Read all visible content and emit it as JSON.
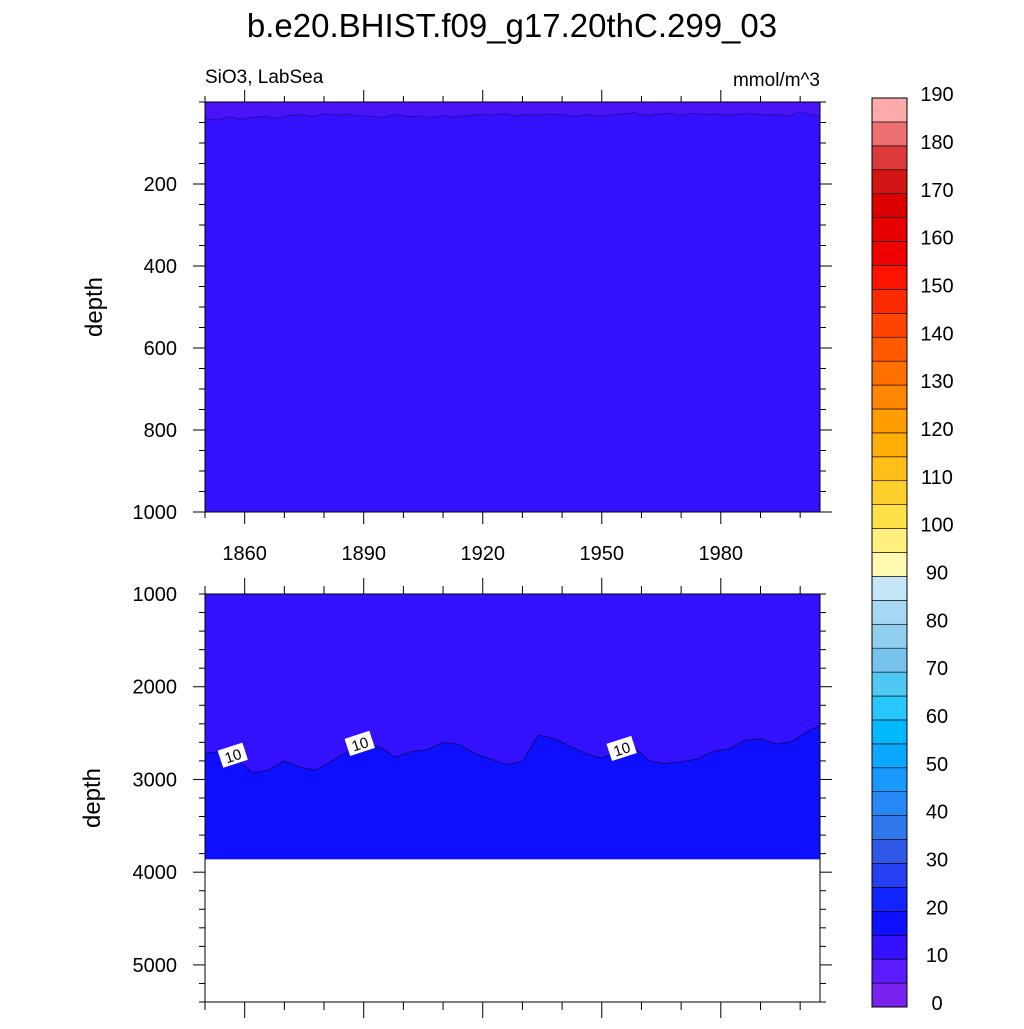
{
  "title": "b.e20.BHIST.f09_g17.20thC.299_03",
  "subtitle_left": "SiO3, LabSea",
  "subtitle_right": "mmol/m^3",
  "chart_data": [
    {
      "type": "heatmap",
      "panel": "upper",
      "ylabel": "depth",
      "xlim": [
        1850,
        2005
      ],
      "ylim": [
        0,
        1000
      ],
      "y_reversed": true,
      "x_ticks": [
        1860,
        1890,
        1920,
        1950,
        1980
      ],
      "y_ticks": [
        200,
        400,
        600,
        800,
        1000
      ],
      "fill_color": "#3311ff",
      "description_values": "SiO3 between 0 and 10 mmol/m^3 throughout 0-1000 m; thin 0-5 layer near surface (~0-45 m)",
      "surface_band": {
        "years": [
          1850,
          1853,
          1856,
          1859,
          1862,
          1865,
          1868,
          1871,
          1874,
          1877,
          1880,
          1883,
          1886,
          1889,
          1892,
          1895,
          1898,
          1901,
          1904,
          1907,
          1910,
          1913,
          1916,
          1919,
          1922,
          1925,
          1928,
          1931,
          1934,
          1937,
          1940,
          1943,
          1946,
          1949,
          1952,
          1955,
          1958,
          1961,
          1964,
          1967,
          1970,
          1973,
          1976,
          1979,
          1982,
          1985,
          1988,
          1991,
          1994,
          1997,
          2000,
          2003,
          2005
        ],
        "depth": [
          40,
          44,
          36,
          42,
          38,
          35,
          40,
          33,
          31,
          36,
          28,
          32,
          30,
          34,
          35,
          38,
          30,
          36,
          34,
          38,
          32,
          37,
          33,
          30,
          32,
          28,
          34,
          30,
          33,
          29,
          31,
          36,
          30,
          35,
          32,
          30,
          26,
          33,
          30,
          28,
          32,
          27,
          31,
          29,
          33,
          30,
          28,
          32,
          30,
          34,
          24,
          32,
          33
        ]
      }
    },
    {
      "type": "heatmap",
      "panel": "lower",
      "ylabel": "depth",
      "xlim": [
        1850,
        2005
      ],
      "ylim": [
        1000,
        5400
      ],
      "y_reversed": true,
      "y_ticks": [
        1000,
        2000,
        3000,
        4000,
        5000
      ],
      "bottom_depth": 3860,
      "contour_label": "10",
      "contour_label_years": [
        1857,
        1889,
        1955
      ],
      "contour_10": {
        "years": [
          1850,
          1854,
          1858,
          1862,
          1866,
          1870,
          1874,
          1878,
          1882,
          1886,
          1890,
          1894,
          1898,
          1902,
          1906,
          1910,
          1914,
          1918,
          1922,
          1926,
          1930,
          1934,
          1938,
          1942,
          1946,
          1950,
          1954,
          1958,
          1962,
          1966,
          1970,
          1974,
          1978,
          1982,
          1986,
          1990,
          1994,
          1998,
          2002,
          2005
        ],
        "depth": [
          2720,
          2700,
          2780,
          2930,
          2900,
          2800,
          2870,
          2900,
          2800,
          2700,
          2610,
          2650,
          2760,
          2700,
          2680,
          2600,
          2620,
          2720,
          2780,
          2840,
          2810,
          2520,
          2560,
          2640,
          2720,
          2770,
          2700,
          2650,
          2800,
          2830,
          2810,
          2780,
          2700,
          2670,
          2580,
          2560,
          2620,
          2590,
          2480,
          2420
        ]
      },
      "colors": {
        "above_10": "#3311ff",
        "below_10": "#0f0fff"
      }
    }
  ],
  "colorbar": {
    "labels": [
      "0",
      "10",
      "20",
      "30",
      "40",
      "50",
      "60",
      "70",
      "80",
      "90",
      "100",
      "110",
      "120",
      "130",
      "140",
      "150",
      "160",
      "170",
      "180",
      "190"
    ],
    "colors": [
      "#7a22ee",
      "#5a1cff",
      "#3311ff",
      "#0f0fff",
      "#1224ff",
      "#2440f0",
      "#3058e6",
      "#2e78ec",
      "#2688f6",
      "#1a98fc",
      "#0aa8ff",
      "#00b8ff",
      "#28c6ff",
      "#50c8f4",
      "#76c4ee",
      "#92cef0",
      "#a6d8f4",
      "#c6e6f8",
      "#fffab0",
      "#fff080",
      "#ffe048",
      "#ffd02c",
      "#ffbf18",
      "#ffae08",
      "#ff9c00",
      "#ff8600",
      "#ff7000",
      "#ff5a00",
      "#ff4400",
      "#ff2a00",
      "#ff1200",
      "#f00000",
      "#e60000",
      "#da0000",
      "#d21414",
      "#dc3a3a",
      "#ee7070",
      "#ffaaaa"
    ]
  }
}
